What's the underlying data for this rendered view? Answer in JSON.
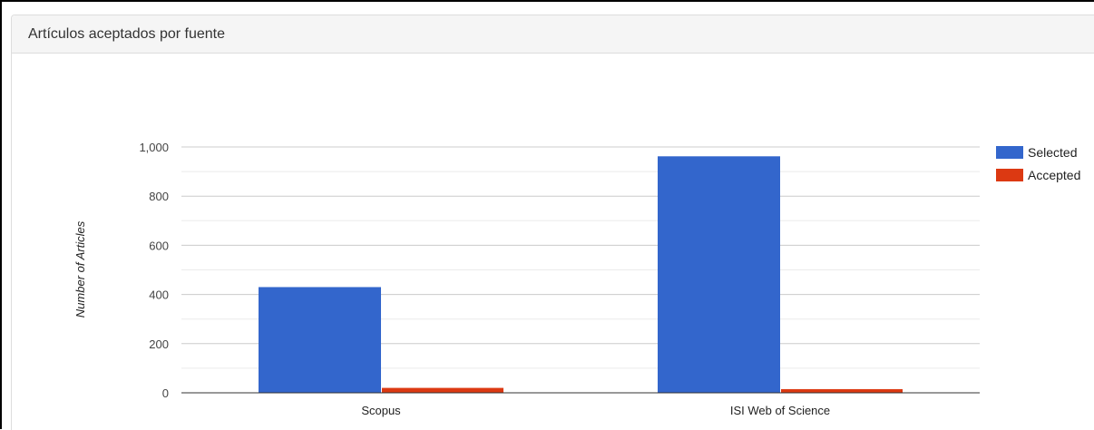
{
  "panel": {
    "title": "Artículos aceptados por fuente"
  },
  "chart_data": {
    "type": "bar",
    "categories": [
      "Scopus",
      "ISI Web of Science"
    ],
    "series": [
      {
        "name": "Selected",
        "color": "#3366cc",
        "values": [
          430,
          962
        ]
      },
      {
        "name": "Accepted",
        "color": "#dc3912",
        "values": [
          20,
          15
        ]
      }
    ],
    "ylabel": "Number of Articles",
    "ylim": [
      0,
      1000
    ],
    "yticks": [
      {
        "value": 0,
        "label": "0"
      },
      {
        "value": 200,
        "label": "200"
      },
      {
        "value": 400,
        "label": "400"
      },
      {
        "value": 600,
        "label": "600"
      },
      {
        "value": 800,
        "label": "800"
      },
      {
        "value": 1000,
        "label": "1,000"
      }
    ],
    "grid": true,
    "legend_position": "right"
  }
}
